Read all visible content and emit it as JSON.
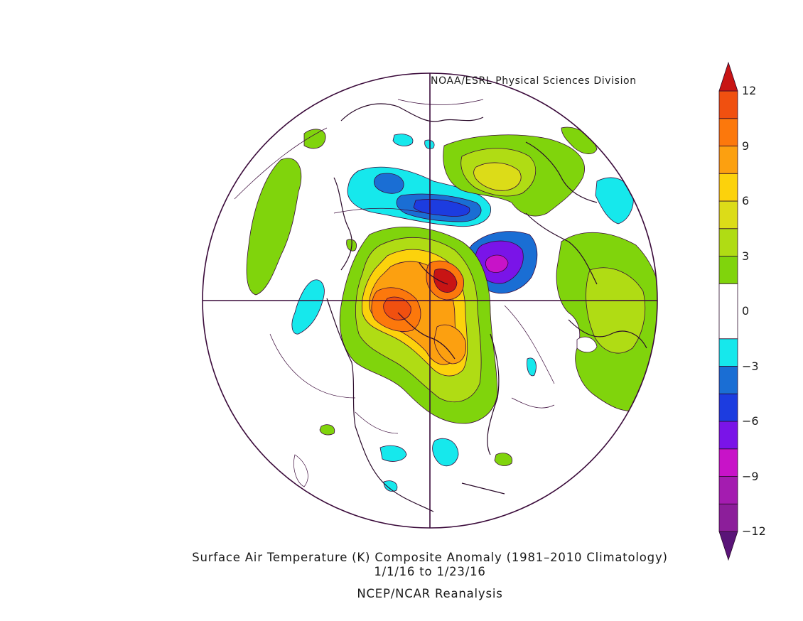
{
  "credit": "NOAA/ESRL Physical Sciences Division",
  "title": "Surface Air Temperature (K) Composite Anomaly (1981–2010 Climatology)",
  "dates": "1/1/16   to 1/23/16",
  "source": "NCEP/NCAR Reanalysis",
  "colorbar": {
    "ticks": [
      "12",
      "9",
      "6",
      "3",
      "0",
      "−3",
      "−6",
      "−9",
      "−12"
    ],
    "tick_values": [
      12,
      9,
      6,
      3,
      0,
      -3,
      -6,
      -9,
      -12
    ],
    "bins": [
      {
        "lo": -13,
        "hi": -12,
        "color": "#5a1478"
      },
      {
        "lo": -12,
        "hi": -10.5,
        "color": "#8c1e9a"
      },
      {
        "lo": -10.5,
        "hi": -9,
        "color": "#a41cb0"
      },
      {
        "lo": -9,
        "hi": -7.5,
        "color": "#c813c8"
      },
      {
        "lo": -7.5,
        "hi": -6,
        "color": "#7a14e8"
      },
      {
        "lo": -6,
        "hi": -4.5,
        "color": "#1c3ce0"
      },
      {
        "lo": -4.5,
        "hi": -3,
        "color": "#1a6ed4"
      },
      {
        "lo": -3,
        "hi": -1.5,
        "color": "#16e8ec"
      },
      {
        "lo": -1.5,
        "hi": 1.5,
        "color": "#ffffff"
      },
      {
        "lo": 1.5,
        "hi": 3,
        "color": "#80d40c"
      },
      {
        "lo": 3,
        "hi": 4.5,
        "color": "#b0dc14"
      },
      {
        "lo": 4.5,
        "hi": 6,
        "color": "#dcdc18"
      },
      {
        "lo": 6,
        "hi": 7.5,
        "color": "#fcd20c"
      },
      {
        "lo": 7.5,
        "hi": 9,
        "color": "#fca010"
      },
      {
        "lo": 9,
        "hi": 10.5,
        "color": "#fc780c"
      },
      {
        "lo": 10.5,
        "hi": 12,
        "color": "#f05010"
      },
      {
        "lo": 12,
        "hi": 13,
        "color": "#c81414"
      }
    ]
  },
  "colors": {
    "outline": "#3a0a3a",
    "land": "#2a0a2a",
    "background": "#ffffff"
  }
}
